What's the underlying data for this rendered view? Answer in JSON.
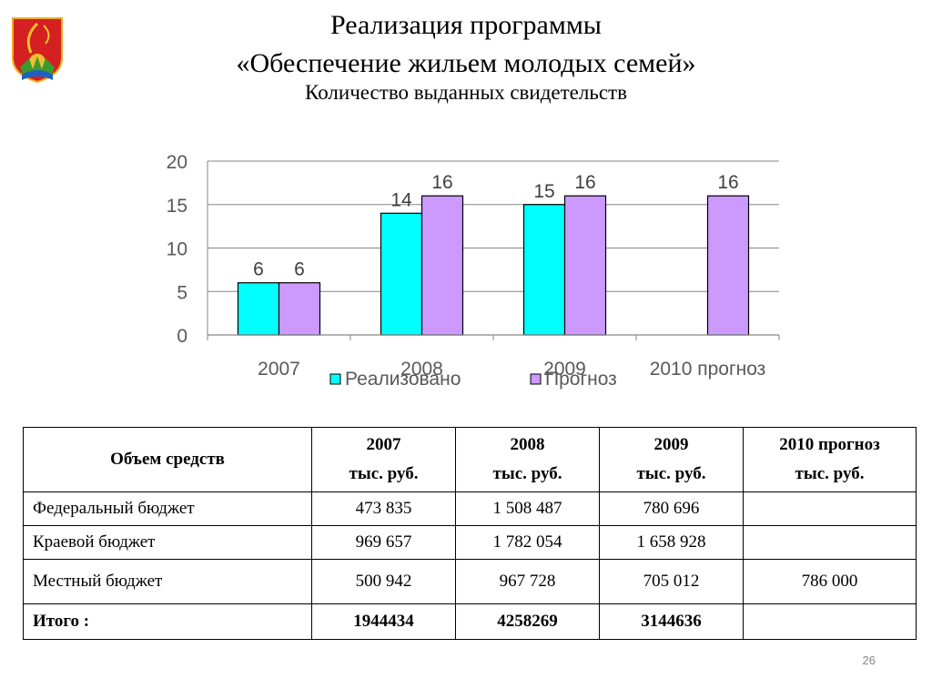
{
  "slide": {
    "title_line1": "Реализация программы",
    "title_line2": "«Обеспечение жильем молодых семей»",
    "subtitle": "Количество выданных свидетельств",
    "page_number": "26"
  },
  "chart_data": {
    "type": "bar",
    "categories": [
      "2007",
      "2008",
      "2009",
      "2010 прогноз"
    ],
    "series": [
      {
        "name": "Реализовано",
        "values": [
          6,
          14,
          15,
          null
        ],
        "color": "#00ffff"
      },
      {
        "name": "Прогноз",
        "values": [
          6,
          16,
          16,
          16
        ],
        "color": "#cc99ff"
      }
    ],
    "ylim": [
      0,
      20
    ],
    "yticks": [
      0,
      5,
      10,
      15,
      20
    ],
    "grid": true,
    "legend": "bottom"
  },
  "table": {
    "header_label": "Объем  средств",
    "columns": [
      {
        "year": "2007",
        "unit": "тыс. руб."
      },
      {
        "year": "2008",
        "unit": "тыс. руб."
      },
      {
        "year": "2009",
        "unit": "тыс. руб."
      },
      {
        "year": "2010 прогноз",
        "unit": "тыс. руб."
      }
    ],
    "rows": [
      {
        "label": "Федеральный бюджет",
        "values": [
          "473 835",
          "1 508 487",
          "780 696",
          ""
        ]
      },
      {
        "label": "Краевой бюджет",
        "values": [
          "969 657",
          "1 782 054",
          "1 658 928",
          ""
        ]
      },
      {
        "label": "Местный бюджет",
        "values": [
          "500 942",
          "967 728",
          "705 012",
          "786 000"
        ]
      }
    ],
    "total": {
      "label": "Итого :",
      "values": [
        "1944434",
        "4258269",
        "3144636",
        ""
      ]
    }
  }
}
